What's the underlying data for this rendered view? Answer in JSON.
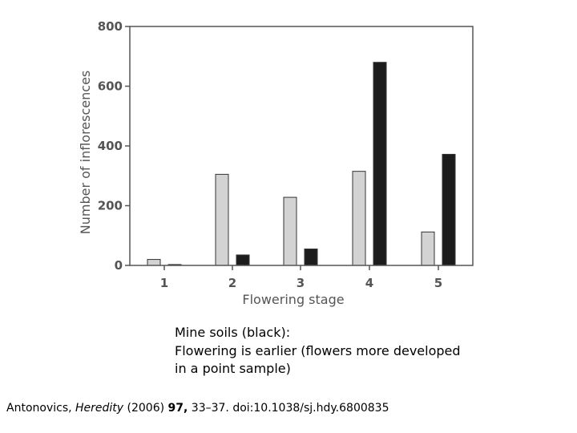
{
  "chart_data": {
    "type": "bar",
    "categories": [
      "1",
      "2",
      "3",
      "4",
      "5"
    ],
    "series": [
      {
        "values": [
          20,
          305,
          228,
          315,
          112
        ],
        "color": "#d3d3d3"
      },
      {
        "values": [
          3,
          35,
          55,
          680,
          372
        ],
        "color": "#1c1c1c"
      }
    ],
    "title": "",
    "xlabel": "Flowering stage",
    "ylabel": "Number of inflorescences",
    "ylim": [
      0,
      800
    ],
    "yticks": [
      "0",
      "200",
      "400",
      "600",
      "800"
    ],
    "grid": false
  },
  "caption": {
    "lines": [
      "Mine soils (black):",
      "Flowering is earlier (flowers more developed",
      "in a point sample)"
    ]
  },
  "citation": {
    "authors": "Antonovics, ",
    "journal": "Heredity",
    "year": " (2006) ",
    "volume": "97,",
    "pages": " 33–37. ",
    "doi": "doi:10.1038/sj.hdy.6800835"
  }
}
